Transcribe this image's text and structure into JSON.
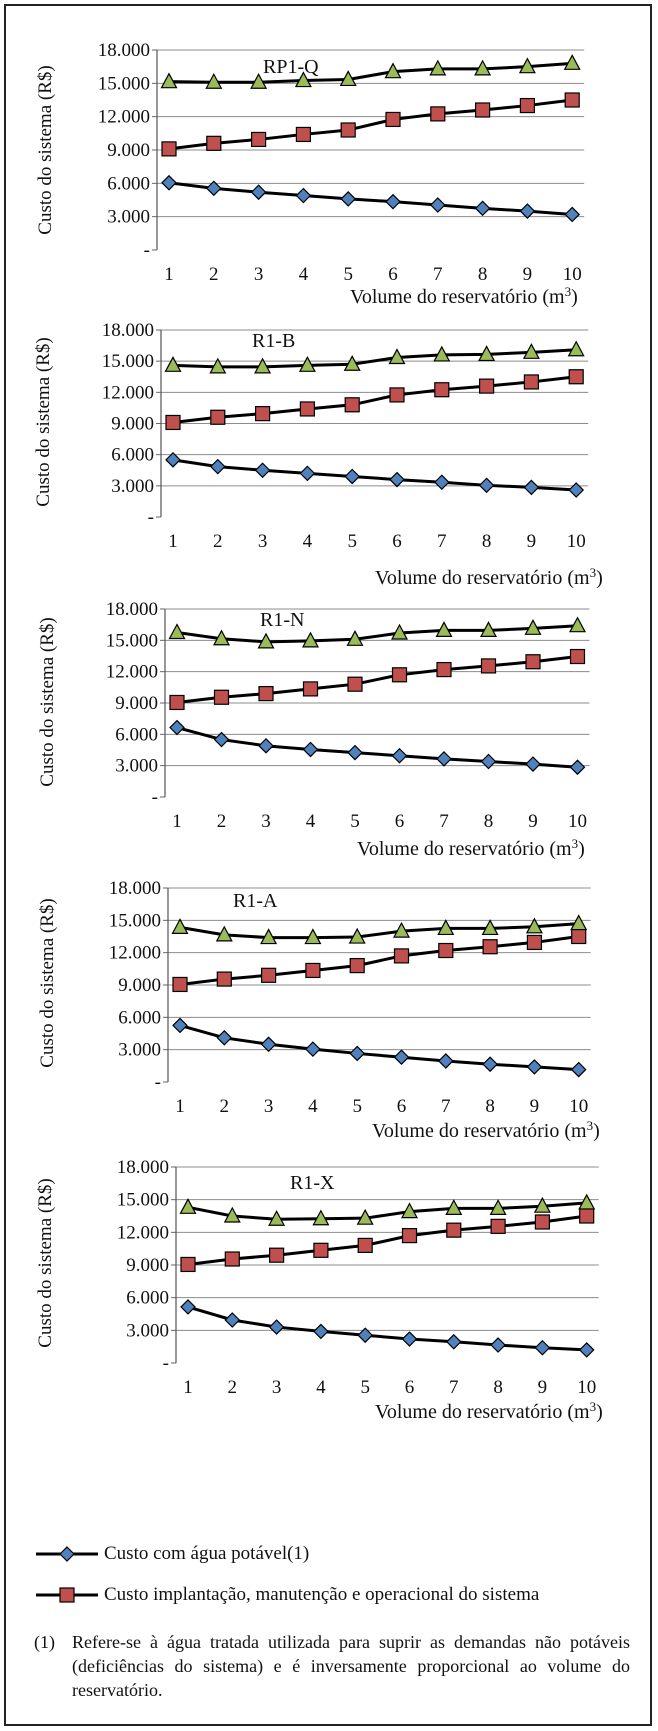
{
  "chart_data": [
    {
      "type": "line",
      "title": "RP1-Q",
      "ylabel": "Custo do sistema (R$)",
      "xlabel": "Volume do reservatório (m",
      "xlabel_sup": "3",
      "xlabel_close": ")",
      "x": [
        1,
        2,
        3,
        4,
        5,
        6,
        7,
        8,
        9,
        10
      ],
      "ylim": [
        0,
        18000
      ],
      "yticks": [
        "-",
        "3.000",
        "6.000",
        "9.000",
        "12.000",
        "15.000",
        "18.000"
      ],
      "grid": true,
      "series": [
        {
          "name": "Custo com água potável(1)",
          "marker": "diamond",
          "color": "#4f81bd",
          "values": [
            6050,
            5550,
            5200,
            4900,
            4600,
            4350,
            4050,
            3750,
            3500,
            3200
          ]
        },
        {
          "name": "Custo implantação, manutenção e operacional do sistema",
          "marker": "square",
          "color": "#c0504d",
          "values": [
            9100,
            9600,
            9950,
            10400,
            10800,
            11750,
            12250,
            12600,
            13000,
            13500
          ]
        },
        {
          "marker": "triangle",
          "color": "#9bbb59",
          "values": [
            15150,
            15100,
            15100,
            15250,
            15350,
            16050,
            16300,
            16300,
            16500,
            16800
          ]
        }
      ]
    },
    {
      "type": "line",
      "title": "R1-B",
      "ylabel": "Custo do sistema (R$)",
      "xlabel": "Volume do reservatório (m",
      "xlabel_sup": "3",
      "xlabel_close": ")",
      "x": [
        1,
        2,
        3,
        4,
        5,
        6,
        7,
        8,
        9,
        10
      ],
      "ylim": [
        0,
        18000
      ],
      "yticks": [
        "-",
        "3.000",
        "6.000",
        "9.000",
        "12.000",
        "15.000",
        "18.000"
      ],
      "grid": true,
      "series": [
        {
          "marker": "diamond",
          "color": "#4f81bd",
          "values": [
            5500,
            4850,
            4500,
            4200,
            3900,
            3600,
            3350,
            3050,
            2850,
            2600
          ]
        },
        {
          "marker": "square",
          "color": "#c0504d",
          "values": [
            9100,
            9600,
            9950,
            10400,
            10800,
            11750,
            12250,
            12600,
            13000,
            13500
          ]
        },
        {
          "marker": "triangle",
          "color": "#9bbb59",
          "values": [
            14600,
            14450,
            14450,
            14600,
            14700,
            15350,
            15600,
            15650,
            15850,
            16100
          ]
        }
      ]
    },
    {
      "type": "line",
      "title": "R1-N",
      "ylabel": "Custo do sistema  (R$)",
      "xlabel": "Volume do reservatório (m",
      "xlabel_sup": "3",
      "xlabel_close": ")",
      "x": [
        1,
        2,
        3,
        4,
        5,
        6,
        7,
        8,
        9,
        10
      ],
      "ylim": [
        0,
        18000
      ],
      "yticks": [
        "-",
        "3.000",
        "6.000",
        "9.000",
        "12.000",
        "15.000",
        "18.000"
      ],
      "grid": true,
      "series": [
        {
          "marker": "diamond",
          "color": "#4f81bd",
          "values": [
            6650,
            5500,
            4900,
            4550,
            4250,
            3950,
            3650,
            3400,
            3150,
            2850
          ]
        },
        {
          "marker": "square",
          "color": "#c0504d",
          "values": [
            9050,
            9550,
            9900,
            10350,
            10800,
            11700,
            12200,
            12550,
            12950,
            13450
          ]
        },
        {
          "marker": "triangle",
          "color": "#9bbb59",
          "values": [
            15750,
            15150,
            14850,
            14950,
            15100,
            15700,
            15950,
            15950,
            16150,
            16400
          ]
        }
      ]
    },
    {
      "type": "line",
      "title": "R1-A",
      "ylabel": "Custo do sistema (R$)",
      "xlabel": "Volume do reservatório (m",
      "xlabel_sup": "3",
      "xlabel_close": ")",
      "x": [
        1,
        2,
        3,
        4,
        5,
        6,
        7,
        8,
        9,
        10
      ],
      "ylim": [
        0,
        18000
      ],
      "yticks": [
        "-",
        "3.000",
        "6.000",
        "9.000",
        "12.000",
        "15.000",
        "18.000"
      ],
      "grid": true,
      "series": [
        {
          "marker": "diamond",
          "color": "#4f81bd",
          "values": [
            5250,
            4100,
            3500,
            3050,
            2650,
            2300,
            1950,
            1650,
            1400,
            1150
          ]
        },
        {
          "marker": "square",
          "color": "#c0504d",
          "values": [
            9050,
            9550,
            9900,
            10350,
            10800,
            11700,
            12200,
            12550,
            12950,
            13500
          ]
        },
        {
          "marker": "triangle",
          "color": "#9bbb59",
          "values": [
            14350,
            13650,
            13400,
            13400,
            13450,
            14000,
            14250,
            14250,
            14400,
            14700
          ]
        }
      ]
    },
    {
      "type": "line",
      "title": "R1-X",
      "ylabel": "Custo do sistema (R$)",
      "xlabel": "Volume do reservatório (m",
      "xlabel_sup": "3",
      "xlabel_close": ")",
      "x": [
        1,
        2,
        3,
        4,
        5,
        6,
        7,
        8,
        9,
        10
      ],
      "ylim": [
        0,
        18000
      ],
      "yticks": [
        "-",
        "3.000",
        "6.000",
        "9.000",
        "12.000",
        "15.000",
        "18.000"
      ],
      "grid": true,
      "series": [
        {
          "marker": "diamond",
          "color": "#4f81bd",
          "values": [
            5150,
            3950,
            3300,
            2900,
            2550,
            2200,
            1950,
            1650,
            1400,
            1200
          ]
        },
        {
          "marker": "square",
          "color": "#c0504d",
          "values": [
            9050,
            9550,
            9900,
            10350,
            10800,
            11700,
            12200,
            12550,
            12950,
            13500
          ]
        },
        {
          "marker": "triangle",
          "color": "#9bbb59",
          "values": [
            14300,
            13500,
            13200,
            13250,
            13300,
            13900,
            14200,
            14200,
            14400,
            14700
          ]
        }
      ]
    }
  ],
  "legend": {
    "item1": "Custo com água potável(1)",
    "item2": "Custo implantação, manutenção e operacional do sistema"
  },
  "footnote": {
    "number": "(1)",
    "text": "Refere-se à água tratada utilizada para suprir as demandas não potáveis (deficiências do sistema) e é inversamente proporcional ao volume do reservatório."
  }
}
